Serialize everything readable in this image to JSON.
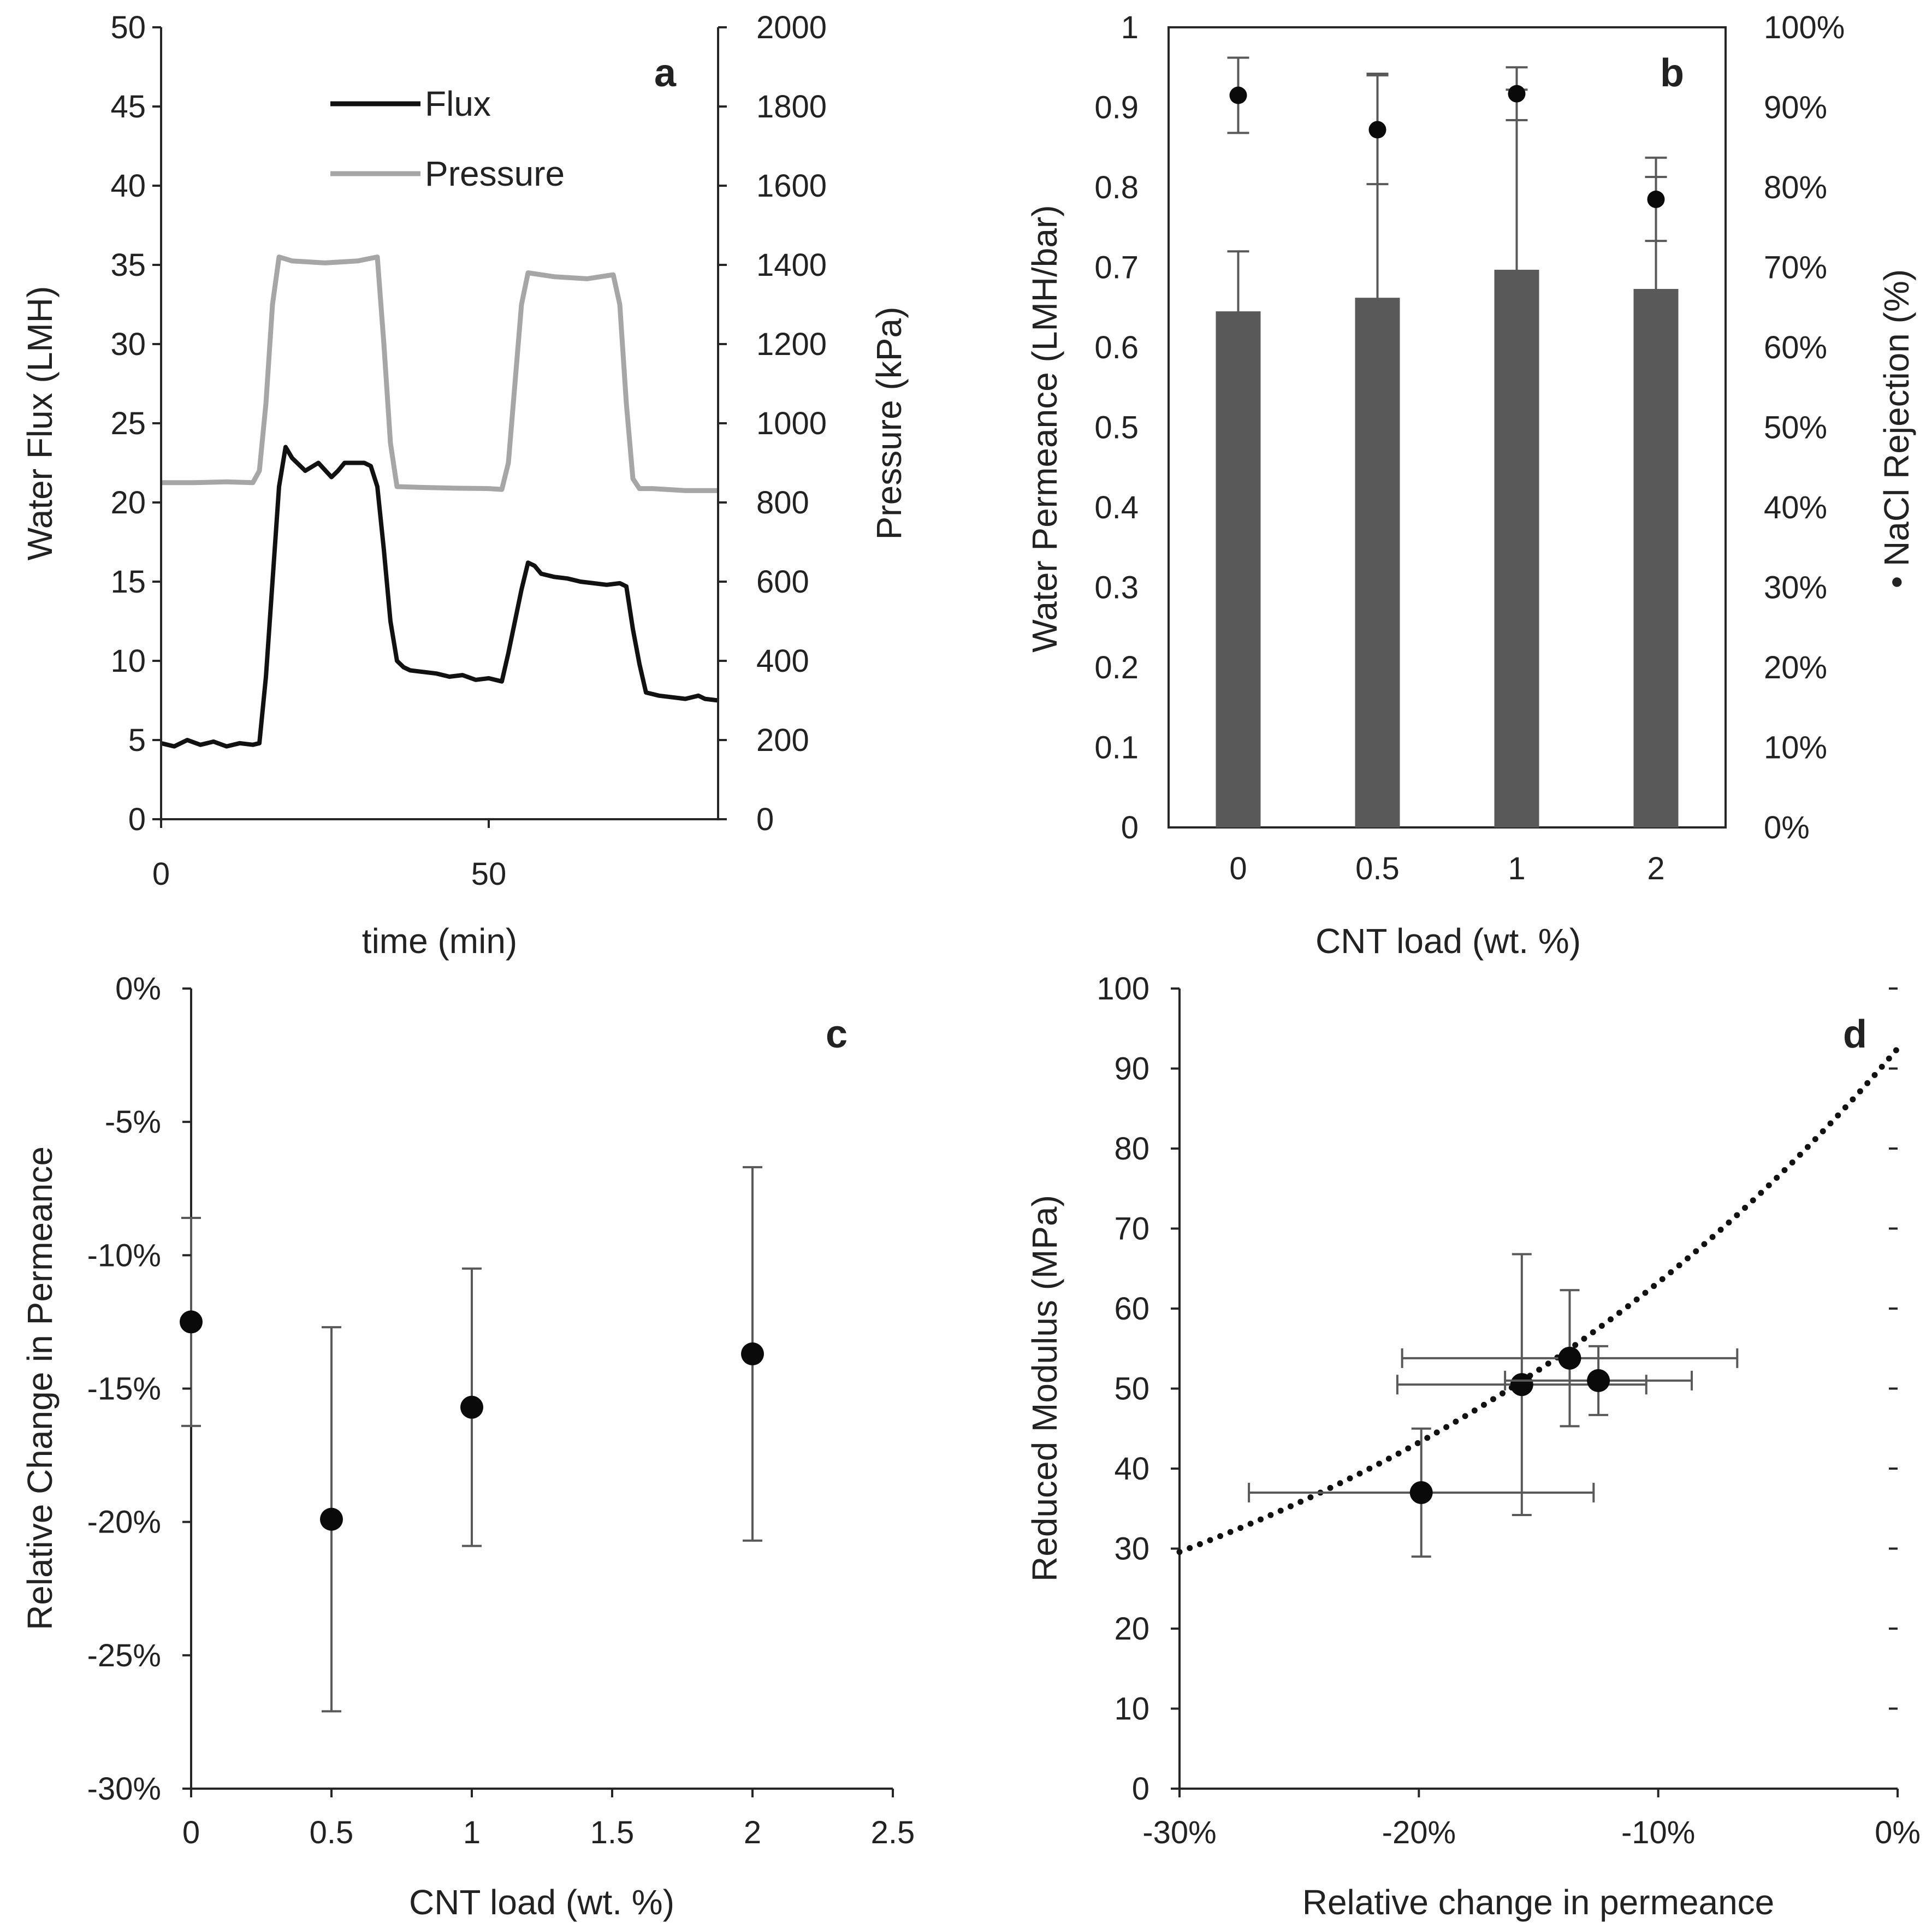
{
  "colors": {
    "flux": "#111111",
    "pressure": "#a6a6a6",
    "bar": "#595959",
    "errorbar": "#595959",
    "point": "#0a0a0a",
    "axis": "#262626"
  },
  "chart_data": [
    {
      "panel": "a",
      "type": "line",
      "xlabel": "time (min)",
      "ylabel": "Water Flux (LMH)",
      "y2label": "Pressure (kPa)",
      "xlim": [
        0,
        85
      ],
      "ylim": [
        0,
        50
      ],
      "y2lim": [
        0,
        2000
      ],
      "xticks": [
        "0",
        "50"
      ],
      "yticks": [
        "0",
        "5",
        "10",
        "15",
        "20",
        "25",
        "30",
        "35",
        "40",
        "45",
        "50"
      ],
      "y2ticks": [
        "0",
        "200",
        "400",
        "600",
        "800",
        "1000",
        "1200",
        "1400",
        "1600",
        "1800",
        "2000"
      ],
      "legend": {
        "flux_label": "Flux",
        "pressure_label": "Pressure"
      },
      "series": [
        {
          "name": "Flux",
          "axis": "left",
          "x": [
            0,
            2,
            4,
            6,
            8,
            10,
            12,
            14,
            15,
            16,
            17,
            18,
            19,
            20,
            22,
            24,
            26,
            27,
            28,
            30,
            31,
            32,
            33,
            34,
            35,
            36,
            37,
            38,
            40,
            42,
            44,
            46,
            48,
            50,
            52,
            53,
            54,
            55,
            56,
            57,
            58,
            60,
            62,
            64,
            66,
            68,
            70,
            71,
            72,
            73,
            74,
            75,
            76,
            78,
            80,
            82,
            83,
            85
          ],
          "y": [
            4.8,
            4.6,
            5.0,
            4.7,
            4.9,
            4.6,
            4.8,
            4.7,
            4.8,
            9.0,
            15.0,
            21.0,
            23.5,
            22.8,
            22.0,
            22.5,
            21.6,
            22.0,
            22.5,
            22.5,
            22.5,
            22.3,
            21.0,
            17.0,
            12.5,
            10.0,
            9.6,
            9.4,
            9.3,
            9.2,
            9.0,
            9.1,
            8.8,
            8.9,
            8.7,
            10.5,
            12.5,
            14.5,
            16.2,
            16.0,
            15.5,
            15.3,
            15.2,
            15.0,
            14.9,
            14.8,
            14.9,
            14.7,
            12.0,
            9.8,
            8.0,
            7.9,
            7.8,
            7.7,
            7.6,
            7.8,
            7.6,
            7.5
          ]
        },
        {
          "name": "Pressure",
          "axis": "right",
          "x": [
            0,
            5,
            10,
            14,
            15,
            16,
            17,
            18,
            20,
            25,
            30,
            33,
            34,
            35,
            36,
            40,
            45,
            50,
            52,
            53,
            54,
            55,
            56,
            60,
            65,
            69,
            70,
            71,
            72,
            73,
            75,
            80,
            85
          ],
          "y": [
            850,
            850,
            852,
            850,
            880,
            1050,
            1300,
            1420,
            1410,
            1405,
            1410,
            1420,
            1200,
            950,
            840,
            838,
            836,
            835,
            833,
            900,
            1100,
            1300,
            1380,
            1370,
            1365,
            1375,
            1300,
            1050,
            860,
            835,
            835,
            830,
            830
          ]
        }
      ],
      "panel_label": "a"
    },
    {
      "panel": "b",
      "type": "bar",
      "xlabel": "CNT load (wt. %)",
      "ylabel": "Water Permeance (LMH/bar)",
      "y2label": "• NaCl Rejection (%)",
      "categories": [
        "0",
        "0.5",
        "1",
        "2"
      ],
      "ylim": [
        0,
        1
      ],
      "y2lim": [
        0,
        100
      ],
      "yticks": [
        "0",
        "0.1",
        "0.2",
        "0.3",
        "0.4",
        "0.5",
        "0.6",
        "0.7",
        "0.8",
        "0.9",
        "1"
      ],
      "y2ticks": [
        "0%",
        "10%",
        "20%",
        "30%",
        "40%",
        "50%",
        "60%",
        "70%",
        "80%",
        "90%",
        "100%"
      ],
      "series": [
        {
          "name": "Water Permeance",
          "axis": "left",
          "values": [
            0.645,
            0.662,
            0.697,
            0.673
          ],
          "errors": [
            0.075,
            0.28,
            0.225,
            0.14
          ]
        },
        {
          "name": "NaCl Rejection",
          "axis": "right",
          "values": [
            91.5,
            87.2,
            91.7,
            78.5
          ],
          "errors": [
            4.7,
            6.8,
            3.3,
            5.2
          ]
        }
      ],
      "panel_label": "b"
    },
    {
      "panel": "c",
      "type": "scatter",
      "xlabel": "CNT load (wt. %)",
      "ylabel": "Relative Change in Permeance",
      "xlim": [
        0,
        2.5
      ],
      "ylim": [
        -30,
        0
      ],
      "xticks": [
        "0",
        "0.5",
        "1",
        "1.5",
        "2",
        "2.5"
      ],
      "yticks": [
        "-30%",
        "-25%",
        "-20%",
        "-15%",
        "-10%",
        "-5%",
        "0%"
      ],
      "x": [
        0,
        0.5,
        1,
        2
      ],
      "y": [
        -12.5,
        -19.9,
        -15.7,
        -13.7
      ],
      "y_err": [
        3.9,
        7.2,
        5.2,
        7.0
      ],
      "panel_label": "c"
    },
    {
      "panel": "d",
      "type": "scatter",
      "xlabel": "Relative change in permeance",
      "ylabel": "Reduced Modulus (MPa)",
      "xlim": [
        -30,
        0
      ],
      "ylim": [
        0,
        100
      ],
      "xticks": [
        "-30%",
        "-20%",
        "-10%",
        "0%"
      ],
      "yticks": [
        "0",
        "10",
        "20",
        "30",
        "40",
        "50",
        "60",
        "70",
        "80",
        "90",
        "100"
      ],
      "x": [
        -19.9,
        -15.7,
        -13.7,
        -12.5
      ],
      "y": [
        37,
        50.5,
        53.8,
        51
      ],
      "x_err": [
        7.2,
        5.2,
        7.0,
        3.9
      ],
      "y_err": [
        8,
        16.3,
        8.5,
        4.3
      ],
      "trendline": {
        "style": "dotted",
        "a": 92.5,
        "b": 0.038
      },
      "panel_label": "d"
    }
  ]
}
